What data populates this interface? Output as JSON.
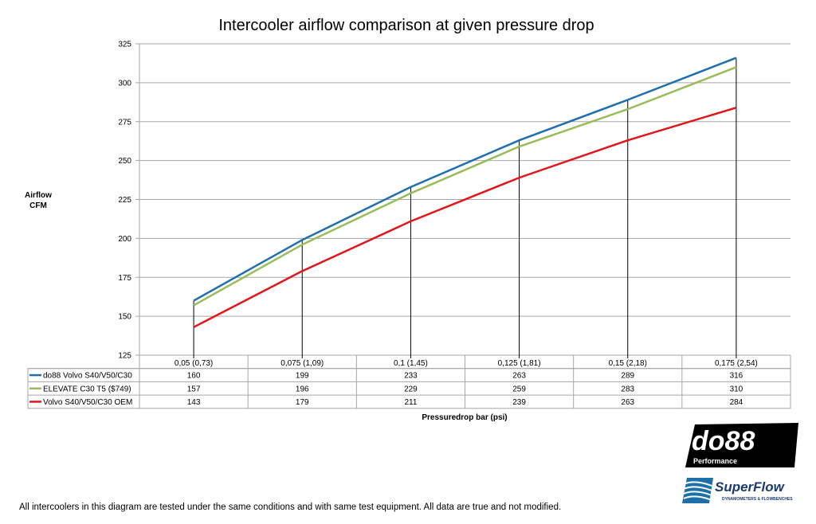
{
  "chart_data": {
    "type": "line",
    "title": "Intercooler airflow comparison at given pressure drop",
    "ylabel": [
      "Airflow",
      "CFM"
    ],
    "xlabel": "Pressuredrop bar (psi)",
    "ylim": [
      125,
      325
    ],
    "yticks": [
      125,
      150,
      175,
      200,
      225,
      250,
      275,
      300,
      325
    ],
    "grid": true,
    "legend": "data-table",
    "categories": [
      "0,05 (0,73)",
      "0,075 (1,09)",
      "0,1 (1,45)",
      "0,125 (1,81)",
      "0,15 (2,18)",
      "0,175 (2,54)"
    ],
    "series": [
      {
        "name": "do88 Volvo S40/V50/C30",
        "color": "#1f6fb0",
        "values": [
          160,
          199,
          233,
          263,
          289,
          316
        ]
      },
      {
        "name": "ELEVATE C30 T5 ($749)",
        "color": "#9bbb59",
        "values": [
          157,
          196,
          229,
          259,
          283,
          310
        ]
      },
      {
        "name": "Volvo S40/V50/C30 OEM",
        "color": "#e0161b",
        "values": [
          143,
          179,
          211,
          239,
          263,
          284
        ]
      }
    ]
  },
  "logos": {
    "do88": "do88",
    "do88_sub": "Performance",
    "superflow": "SuperFlow",
    "superflow_sub": "DYNAMOMETERS & FLOWBENCHES"
  },
  "footer": "All intercoolers in this diagram are tested under the same conditions and with same test equipment. All data are true and not modified."
}
